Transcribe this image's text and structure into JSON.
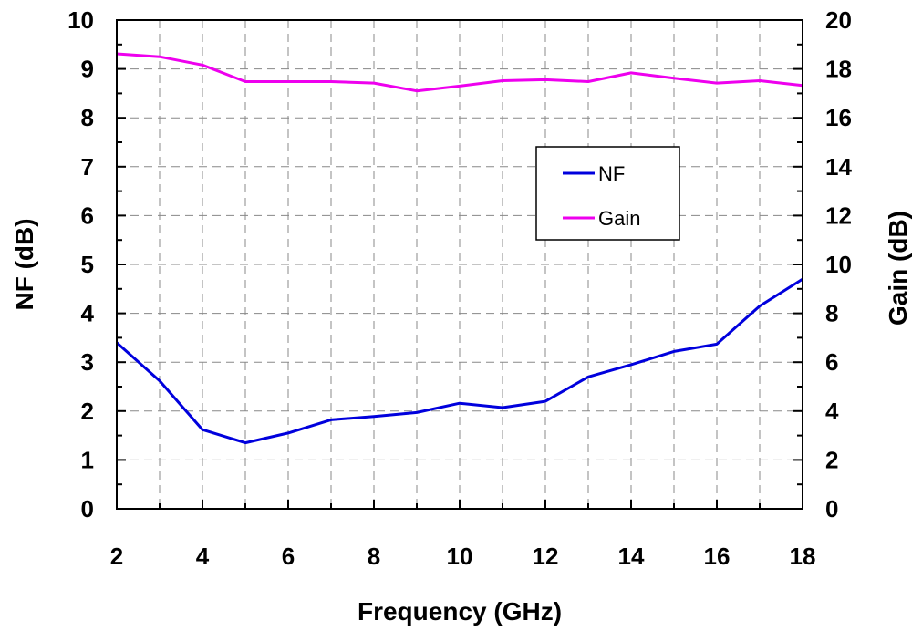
{
  "chart_data": {
    "type": "line",
    "x": [
      2,
      3,
      4,
      5,
      6,
      7,
      8,
      9,
      10,
      11,
      12,
      13,
      14,
      15,
      16,
      17,
      18
    ],
    "xlabel": "Frequency (GHz)",
    "xlim": [
      2,
      18
    ],
    "xticks": [
      "2",
      "4",
      "6",
      "8",
      "10",
      "12",
      "14",
      "16",
      "18"
    ],
    "ylabel": "NF (dB)",
    "ylim": [
      0,
      10
    ],
    "yticks": [
      "0",
      "1",
      "2",
      "3",
      "4",
      "5",
      "6",
      "7",
      "8",
      "9",
      "10"
    ],
    "y2label": "Gain (dB)",
    "y2lim": [
      0,
      20
    ],
    "y2ticks": [
      "0",
      "2",
      "4",
      "6",
      "8",
      "10",
      "12",
      "14",
      "16",
      "18",
      "20"
    ],
    "grid": true,
    "legend_position": "center-right",
    "series": [
      {
        "name": "NF",
        "axis": "left",
        "color": "#0000dd",
        "values": [
          3.4,
          2.62,
          1.62,
          1.35,
          1.55,
          1.82,
          1.89,
          1.97,
          2.16,
          2.07,
          2.2,
          2.7,
          2.95,
          3.22,
          3.37,
          4.15,
          4.7
        ]
      },
      {
        "name": "Gain",
        "axis": "right",
        "color": "#ee00ee",
        "values": [
          18.62,
          18.5,
          18.16,
          17.48,
          17.48,
          17.48,
          17.42,
          17.1,
          17.3,
          17.52,
          17.56,
          17.48,
          17.84,
          17.62,
          17.42,
          17.52,
          17.32
        ]
      }
    ]
  }
}
